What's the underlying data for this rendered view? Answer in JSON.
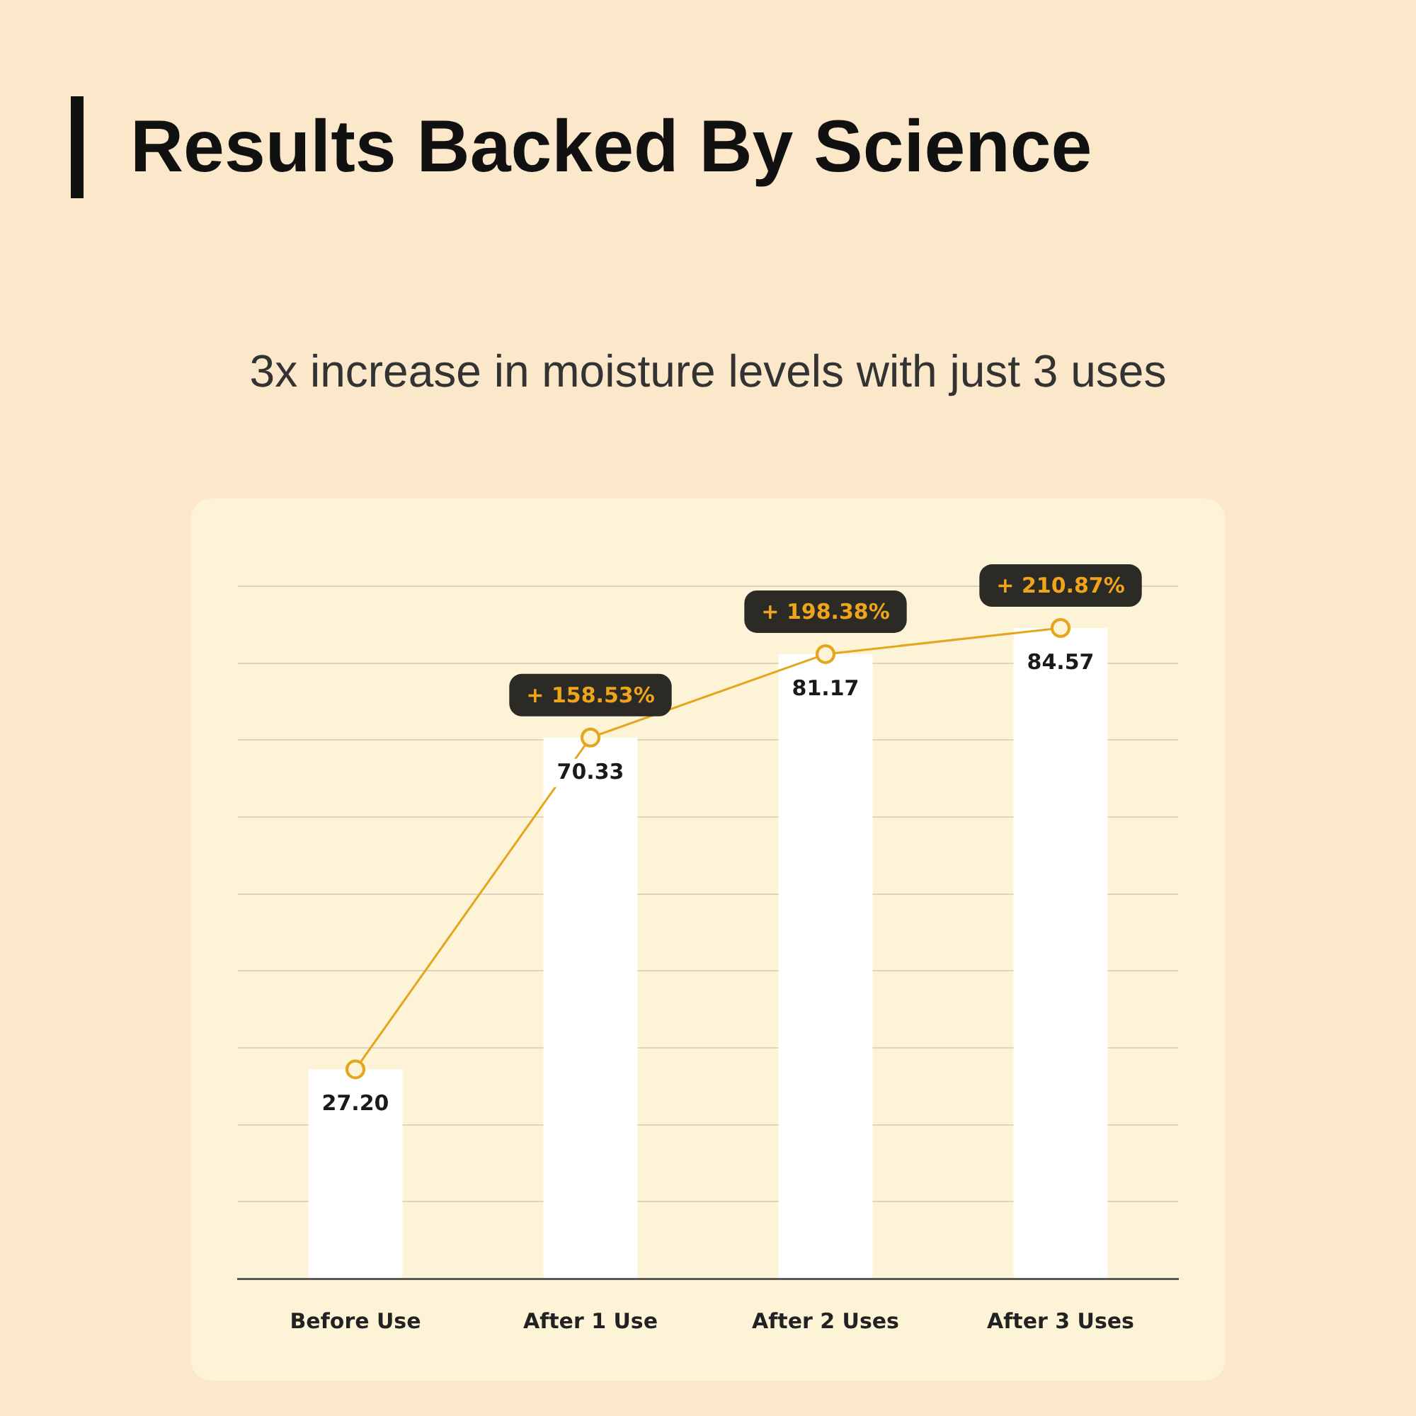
{
  "chart_data": {
    "type": "bar",
    "title": "Results Backed By Science",
    "subtitle": "3x increase in moisture levels with just 3 uses",
    "categories": [
      "Before Use",
      "After 1 Use",
      "After 2 Uses",
      "After 3 Uses"
    ],
    "series": [
      {
        "color": "#ffffff",
        "values": [
          27.2,
          70.33,
          81.17,
          84.57
        ],
        "value_labels": [
          "27.20",
          "70.33",
          "81.17",
          "84.57"
        ]
      },
      {
        "type": "line",
        "color": "#e3a61c",
        "values": [
          27.2,
          70.33,
          81.17,
          84.57
        ],
        "marker": "circle"
      }
    ],
    "annotations": [
      {
        "text": "+ 158.53%",
        "x": "After 1 Use",
        "y": 70.33
      },
      {
        "text": "+ 198.38%",
        "x": "After 2 Uses",
        "y": 81.17
      },
      {
        "text": "+ 210.87%",
        "x": "After 3 Uses",
        "y": 84.57
      }
    ],
    "ylim": [
      0,
      90
    ],
    "yticks": [
      {
        "value": 0,
        "label": null
      },
      {
        "value": 10,
        "label": null
      },
      {
        "value": 20,
        "label": null
      },
      {
        "value": 30,
        "label": null
      },
      {
        "value": 40,
        "label": null
      },
      {
        "value": 50,
        "label": null
      },
      {
        "value": 60,
        "label": null
      },
      {
        "value": 70,
        "label": null
      },
      {
        "value": 80,
        "label": null
      },
      {
        "value": 90,
        "label": null
      }
    ],
    "tick_labels": "x",
    "grid": "y",
    "legend": false
  }
}
